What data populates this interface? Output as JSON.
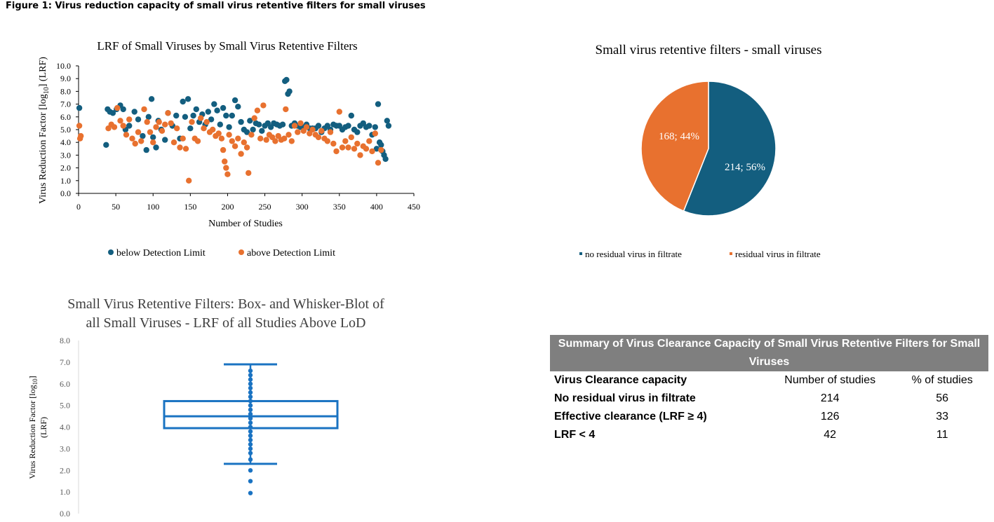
{
  "figure_title": "Figure 1: Virus reduction capacity of small virus retentive filters for small viruses",
  "colors": {
    "blue": "#135e7f",
    "orange": "#e8712f",
    "boxblue": "#1a73c2",
    "table_header": "#7f7f7f"
  },
  "chart_data": [
    {
      "type": "scatter",
      "title": "LRF of Small Viruses by Small Virus Retentive Filters",
      "xlabel": "Number of Studies",
      "ylabel": "Virus Reduction Factor [log10] (LRF)",
      "ylabel_main": "Virus Reduction Factor [log",
      "ylabel_sub": "10",
      "ylabel_tail": "] (LRF)",
      "xlim": [
        0,
        450
      ],
      "ylim": [
        0,
        10
      ],
      "x_ticks": [
        "0",
        "50",
        "100",
        "150",
        "200",
        "250",
        "300",
        "350",
        "400",
        "450"
      ],
      "y_ticks": [
        "0.0",
        "1.0",
        "2.0",
        "3.0",
        "4.0",
        "5.0",
        "6.0",
        "7.0",
        "8.0",
        "9.0",
        "10.0"
      ],
      "legend": [
        "below Detection Limit",
        "above Detection Limit"
      ],
      "series": [
        {
          "name": "below Detection Limit",
          "color": "#135e7f",
          "points": [
            [
              1,
              6.7
            ],
            [
              37,
              3.8
            ],
            [
              39,
              6.6
            ],
            [
              42,
              6.4
            ],
            [
              46,
              6.3
            ],
            [
              51,
              6.6
            ],
            [
              56,
              6.9
            ],
            [
              60,
              6.6
            ],
            [
              63,
              5.0
            ],
            [
              68,
              5.3
            ],
            [
              75,
              6.4
            ],
            [
              80,
              5.8
            ],
            [
              86,
              4.5
            ],
            [
              91,
              3.4
            ],
            [
              94,
              6.0
            ],
            [
              98,
              7.4
            ],
            [
              100,
              4.4
            ],
            [
              104,
              3.6
            ],
            [
              107,
              5.7
            ],
            [
              111,
              5.0
            ],
            [
              116,
              4.2
            ],
            [
              120,
              6.3
            ],
            [
              126,
              5.3
            ],
            [
              131,
              6.1
            ],
            [
              136,
              4.3
            ],
            [
              140,
              7.2
            ],
            [
              143,
              6.0
            ],
            [
              147,
              7.4
            ],
            [
              150,
              5.1
            ],
            [
              154,
              6.1
            ],
            [
              158,
              6.6
            ],
            [
              162,
              5.6
            ],
            [
              166,
              6.2
            ],
            [
              170,
              5.4
            ],
            [
              174,
              6.4
            ],
            [
              178,
              5.8
            ],
            [
              182,
              7.0
            ],
            [
              186,
              6.5
            ],
            [
              190,
              5.4
            ],
            [
              194,
              6.7
            ],
            [
              198,
              6.1
            ],
            [
              202,
              5.2
            ],
            [
              206,
              6.1
            ],
            [
              210,
              7.3
            ],
            [
              214,
              6.8
            ],
            [
              218,
              5.6
            ],
            [
              222,
              5.0
            ],
            [
              226,
              4.8
            ],
            [
              230,
              5.7
            ],
            [
              234,
              5.0
            ],
            [
              238,
              5.5
            ],
            [
              242,
              5.4
            ],
            [
              246,
              4.9
            ],
            [
              250,
              5.3
            ],
            [
              254,
              5.5
            ],
            [
              258,
              5.2
            ],
            [
              262,
              5.5
            ],
            [
              266,
              5.4
            ],
            [
              270,
              5.3
            ],
            [
              274,
              5.4
            ],
            [
              277,
              8.8
            ],
            [
              279,
              8.9
            ],
            [
              281,
              7.8
            ],
            [
              283,
              8.0
            ],
            [
              286,
              5.3
            ],
            [
              290,
              5.5
            ],
            [
              294,
              5.3
            ],
            [
              298,
              5.2
            ],
            [
              302,
              5.2
            ],
            [
              306,
              5.4
            ],
            [
              310,
              5.1
            ],
            [
              314,
              5.1
            ],
            [
              318,
              5.1
            ],
            [
              322,
              5.3
            ],
            [
              326,
              4.8
            ],
            [
              330,
              5.1
            ],
            [
              334,
              5.3
            ],
            [
              338,
              5.0
            ],
            [
              342,
              5.4
            ],
            [
              346,
              5.3
            ],
            [
              350,
              5.3
            ],
            [
              354,
              5.0
            ],
            [
              358,
              5.2
            ],
            [
              362,
              5.3
            ],
            [
              366,
              6.1
            ],
            [
              370,
              5.0
            ],
            [
              374,
              4.8
            ],
            [
              378,
              5.3
            ],
            [
              382,
              5.5
            ],
            [
              386,
              5.2
            ],
            [
              390,
              5.3
            ],
            [
              394,
              4.6
            ],
            [
              398,
              5.2
            ],
            [
              400,
              3.5
            ],
            [
              402,
              7.0
            ],
            [
              404,
              4.0
            ],
            [
              406,
              3.8
            ],
            [
              408,
              3.3
            ],
            [
              410,
              3.0
            ],
            [
              412,
              2.7
            ],
            [
              414,
              5.7
            ],
            [
              416,
              5.3
            ]
          ]
        },
        {
          "name": "above Detection Limit",
          "color": "#e8712f",
          "points": [
            [
              1,
              5.3
            ],
            [
              2,
              4.3
            ],
            [
              3,
              4.5
            ],
            [
              40,
              5.1
            ],
            [
              44,
              5.4
            ],
            [
              48,
              5.2
            ],
            [
              52,
              6.7
            ],
            [
              56,
              5.7
            ],
            [
              60,
              5.3
            ],
            [
              64,
              4.6
            ],
            [
              68,
              5.8
            ],
            [
              72,
              4.3
            ],
            [
              76,
              3.9
            ],
            [
              80,
              4.8
            ],
            [
              84,
              4.1
            ],
            [
              88,
              6.6
            ],
            [
              92,
              5.6
            ],
            [
              96,
              4.8
            ],
            [
              100,
              4.0
            ],
            [
              104,
              5.2
            ],
            [
              108,
              5.6
            ],
            [
              112,
              4.9
            ],
            [
              116,
              5.4
            ],
            [
              120,
              6.3
            ],
            [
              124,
              5.5
            ],
            [
              128,
              4.0
            ],
            [
              132,
              5.1
            ],
            [
              136,
              3.6
            ],
            [
              140,
              4.3
            ],
            [
              144,
              3.5
            ],
            [
              148,
              1.0
            ],
            [
              152,
              5.6
            ],
            [
              156,
              4.3
            ],
            [
              160,
              4.1
            ],
            [
              164,
              5.9
            ],
            [
              168,
              5.1
            ],
            [
              172,
              5.6
            ],
            [
              176,
              4.8
            ],
            [
              180,
              5.0
            ],
            [
              184,
              4.5
            ],
            [
              188,
              4.7
            ],
            [
              192,
              4.3
            ],
            [
              194,
              3.4
            ],
            [
              196,
              2.5
            ],
            [
              198,
              2.0
            ],
            [
              200,
              1.5
            ],
            [
              202,
              4.6
            ],
            [
              206,
              4.1
            ],
            [
              210,
              3.7
            ],
            [
              214,
              4.3
            ],
            [
              218,
              3.1
            ],
            [
              222,
              4.0
            ],
            [
              226,
              3.6
            ],
            [
              228,
              1.6
            ],
            [
              232,
              4.6
            ],
            [
              236,
              5.9
            ],
            [
              240,
              6.5
            ],
            [
              244,
              4.3
            ],
            [
              248,
              6.9
            ],
            [
              252,
              4.2
            ],
            [
              256,
              4.6
            ],
            [
              260,
              4.4
            ],
            [
              264,
              4.1
            ],
            [
              268,
              4.5
            ],
            [
              272,
              4.2
            ],
            [
              276,
              4.3
            ],
            [
              278,
              6.6
            ],
            [
              282,
              4.6
            ],
            [
              286,
              4.1
            ],
            [
              290,
              5.3
            ],
            [
              294,
              4.8
            ],
            [
              298,
              5.5
            ],
            [
              302,
              4.9
            ],
            [
              306,
              5.2
            ],
            [
              310,
              4.7
            ],
            [
              314,
              5.0
            ],
            [
              318,
              4.6
            ],
            [
              322,
              4.4
            ],
            [
              326,
              4.9
            ],
            [
              330,
              4.3
            ],
            [
              334,
              4.1
            ],
            [
              338,
              4.8
            ],
            [
              342,
              3.9
            ],
            [
              346,
              3.3
            ],
            [
              350,
              6.4
            ],
            [
              354,
              3.6
            ],
            [
              358,
              4.1
            ],
            [
              362,
              3.6
            ],
            [
              366,
              4.4
            ],
            [
              370,
              3.5
            ],
            [
              374,
              3.9
            ],
            [
              378,
              3.0
            ],
            [
              382,
              3.7
            ],
            [
              386,
              3.5
            ],
            [
              390,
              4.1
            ],
            [
              394,
              3.3
            ],
            [
              398,
              4.7
            ],
            [
              402,
              2.4
            ],
            [
              406,
              3.4
            ]
          ]
        }
      ]
    },
    {
      "type": "pie",
      "title": "Small virus retentive filters - small viruses",
      "slices": [
        {
          "name": "no residual virus in filtrate",
          "value": 214,
          "percent": 56,
          "label": "214; 56%",
          "color": "#135e7f"
        },
        {
          "name": "residual virus in filtrate",
          "value": 168,
          "percent": 44,
          "label": "168; 44%",
          "color": "#e8712f"
        }
      ],
      "legend": [
        "no residual virus in filtrate",
        "residual virus in filtrate"
      ]
    },
    {
      "type": "box",
      "title_line1": "Small Virus Retentive Filters: Box- and Whisker-Blot of",
      "title_line2": "all Small Viruses - LRF of all Studies Above LoD",
      "ylabel_main": "Virus Reduction Factor [log",
      "ylabel_sub": "10",
      "ylabel_tail": "]",
      "ylabel_line2": "(LRF)",
      "ylim": [
        0,
        8
      ],
      "y_ticks": [
        "0.0",
        "1.0",
        "2.0",
        "3.0",
        "4.0",
        "5.0",
        "6.0",
        "7.0",
        "8.0"
      ],
      "whisker_low": 2.3,
      "q1": 3.95,
      "median": 4.5,
      "q3": 5.2,
      "whisker_high": 6.9,
      "points": [
        0.95,
        1.5,
        2.0,
        2.5,
        2.8,
        3.0,
        3.2,
        3.4,
        3.6,
        3.8,
        4.0,
        4.2,
        4.4,
        4.6,
        4.8,
        5.0,
        5.2,
        5.4,
        5.6,
        5.8,
        6.0,
        6.2,
        6.4,
        6.6
      ]
    }
  ],
  "summary_table": {
    "title": "Summary of Virus Clearance Capacity of Small Virus Retentive Filters for Small Viruses",
    "columns": [
      "Virus Clearance capacity",
      "Number of studies",
      "% of studies"
    ],
    "rows": [
      [
        "No residual virus in filtrate",
        "214",
        "56"
      ],
      [
        "Effective clearance (LRF ≥ 4)",
        "126",
        "33"
      ],
      [
        "LRF < 4",
        "42",
        "11"
      ]
    ]
  }
}
